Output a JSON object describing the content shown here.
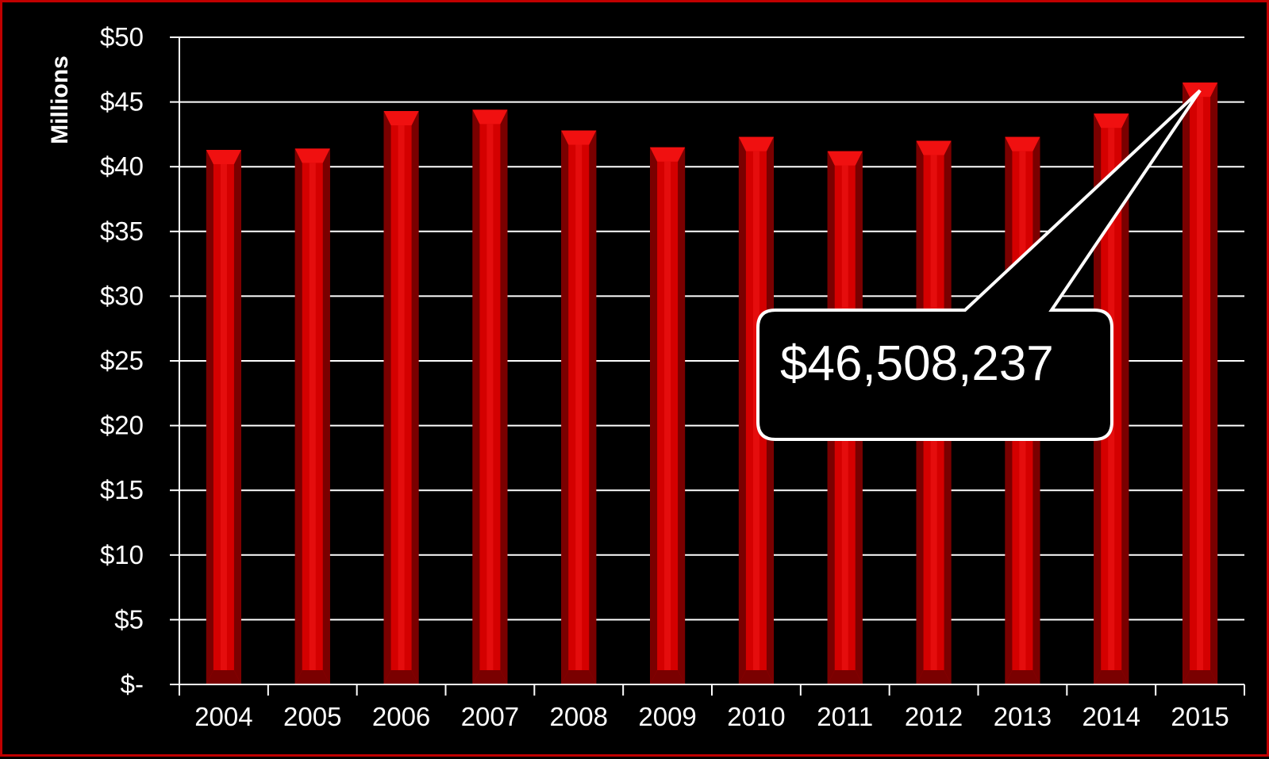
{
  "chart_data": {
    "type": "bar",
    "title": "",
    "xlabel": "",
    "ylabel": "Millions",
    "ylim": [
      0,
      50
    ],
    "ytick_step": 5,
    "ytick_labels": [
      "$-",
      "$5",
      "$10",
      "$15",
      "$20",
      "$25",
      "$30",
      "$35",
      "$40",
      "$45",
      "$50"
    ],
    "categories": [
      "2004",
      "2005",
      "2006",
      "2007",
      "2008",
      "2009",
      "2010",
      "2011",
      "2012",
      "2013",
      "2014",
      "2015"
    ],
    "values": [
      41.3,
      41.4,
      44.3,
      44.4,
      42.8,
      41.5,
      42.3,
      41.2,
      42.0,
      42.3,
      44.1,
      46.5
    ],
    "grid": true,
    "legend": "none",
    "annotation": {
      "text": "$46,508,237",
      "category": "2015"
    },
    "colors": {
      "background": "#000000",
      "border": "#c00000",
      "bar_front": "#d40000",
      "bar_highlight": "#e81010",
      "bar_side": "#7a0000",
      "bar_top": "#f01010",
      "gridline": "#ffffff",
      "text": "#ffffff"
    }
  }
}
